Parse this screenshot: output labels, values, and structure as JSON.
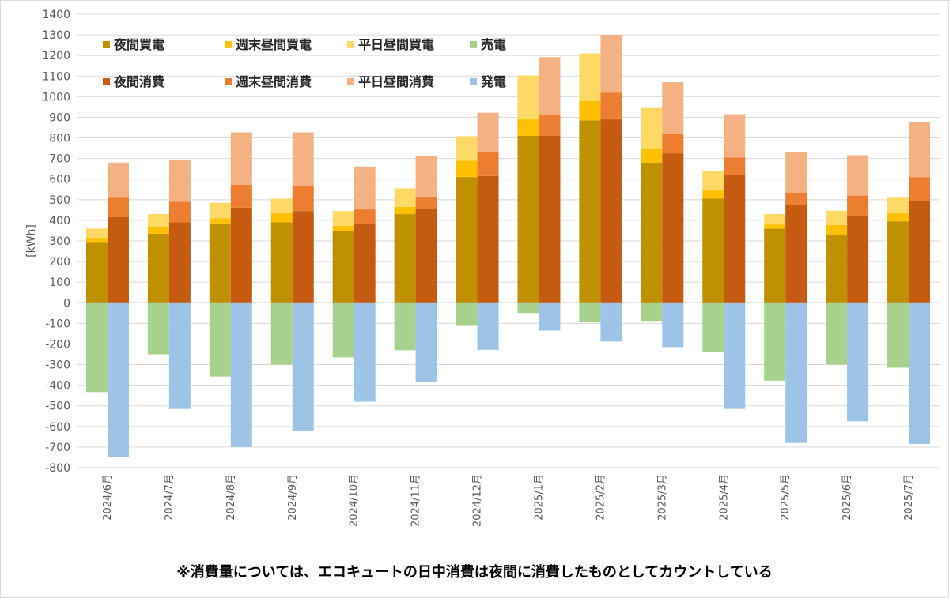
{
  "chart_data": {
    "type": "bar",
    "stacked": true,
    "ylabel": "[kWh]",
    "ylim": [
      -800,
      1400
    ],
    "ytick_step": 100,
    "grid": true,
    "legend_position": "top-left",
    "categories": [
      "2024/6月",
      "2024/7月",
      "2024/8月",
      "2024/9月",
      "2024/10月",
      "2024/11月",
      "2024/12月",
      "2025/1月",
      "2025/2月",
      "2025/3月",
      "2025/4月",
      "2025/5月",
      "2025/6月",
      "2025/7月"
    ],
    "stacks": [
      {
        "name": "purchase",
        "series": [
          {
            "name": "夜間買電",
            "color": "#BF9000",
            "values": [
              295,
              335,
              385,
              390,
              348,
              430,
              610,
              810,
              885,
              680,
              505,
              360,
              332,
              395
            ]
          },
          {
            "name": "週末昼間買電",
            "color": "#FFC000",
            "values": [
              20,
              35,
              25,
              45,
              25,
              35,
              80,
              80,
              95,
              70,
              40,
              20,
              45,
              40
            ]
          },
          {
            "name": "平日昼間買電",
            "color": "#FFD966",
            "values": [
              45,
              60,
              75,
              70,
              72,
              90,
              118,
              213,
              230,
              195,
              95,
              50,
              70,
              75
            ]
          },
          {
            "name": "売電",
            "color": "#A9D18E",
            "values": [
              -433,
              -250,
              -358,
              -300,
              -265,
              -230,
              -112,
              -50,
              -95,
              -88,
              -240,
              -378,
              -300,
              -315
            ]
          }
        ]
      },
      {
        "name": "consumption",
        "series": [
          {
            "name": "夜間消費",
            "color": "#C55A11",
            "values": [
              415,
              390,
              462,
              445,
              383,
              455,
              615,
              810,
              890,
              725,
              620,
              475,
              420,
              492
            ]
          },
          {
            "name": "週末昼間消費",
            "color": "#ED7D31",
            "values": [
              95,
              100,
              110,
              120,
              70,
              60,
              115,
              102,
              130,
              97,
              85,
              60,
              100,
              118
            ]
          },
          {
            "name": "平日昼間消費",
            "color": "#F4B183",
            "values": [
              170,
              205,
              255,
              262,
              208,
              195,
              192,
              280,
              280,
              248,
              210,
              196,
              196,
              265
            ]
          },
          {
            "name": "発電",
            "color": "#9DC3E6",
            "values": [
              -750,
              -515,
              -700,
              -620,
              -480,
              -385,
              -228,
              -135,
              -188,
              -215,
              -515,
              -680,
              -575,
              -685
            ]
          }
        ]
      }
    ],
    "legend_rows": [
      [
        "夜間買電",
        "週末昼間買電",
        "平日昼間買電",
        "売電"
      ],
      [
        "夜間消費",
        "週末昼間消費",
        "平日昼間消費",
        "発電"
      ]
    ]
  },
  "footnote": "※消費量については、エコキュートの日中消費は夜間に消費したものとしてカウントしている"
}
